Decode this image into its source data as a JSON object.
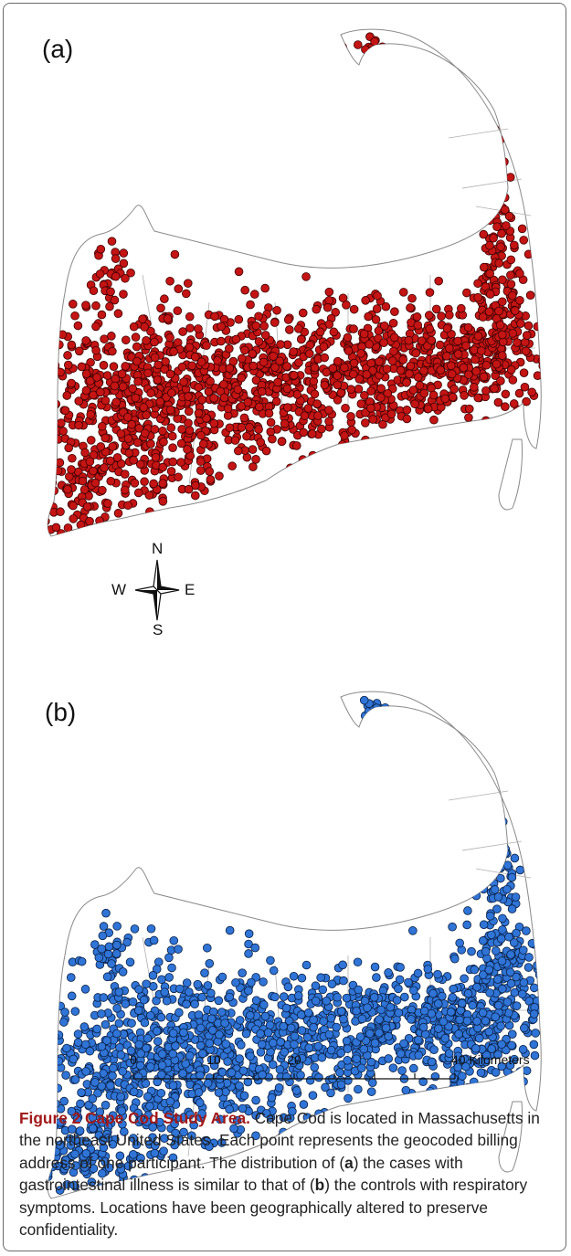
{
  "panels": [
    {
      "id": "a",
      "label": "(a)",
      "point_color": "#c41414",
      "point_stroke": "#3a0000"
    },
    {
      "id": "b",
      "label": "(b)",
      "point_color": "#2f74d6",
      "point_stroke": "#0a1f44"
    }
  ],
  "map": {
    "outline_color": "#8a8a8a",
    "compass": {
      "north": "N",
      "south": "S",
      "east": "E",
      "west": "W"
    },
    "scale_bar": {
      "ticks": [
        "0",
        "10",
        "20",
        "40 Kilometers"
      ]
    }
  },
  "caption": {
    "figure_label": "Figure 2 Cape Cod Study Area.",
    "part1": " Cape Cod is located in Massachusetts in the northeast United States. Each point represents the geocoded billing address of one participant. The distribution of (",
    "ref_a": "a",
    "part2": ") the cases with gastrointestinal illness is similar to that of (",
    "ref_b": "b",
    "part3": ") the controls with respiratory symptoms. Locations have been geographically altered to preserve confidentiality."
  }
}
